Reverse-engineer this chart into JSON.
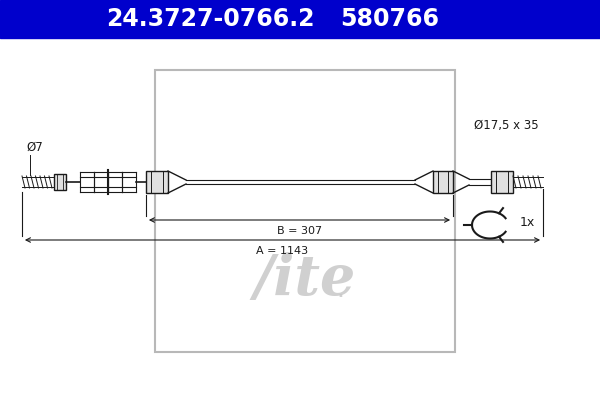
{
  "title1": "24.3727-0766.2",
  "title2": "580766",
  "header_bg": "#0000cc",
  "header_text_color": "#ffffff",
  "bg_color": "#ffffff",
  "drawing_color": "#1a1a1a",
  "watermark_color": "#c8c8c8",
  "border_color": "#b8b8b8",
  "label_phi7": "Ø7",
  "label_phi17": "Ø17,5 x 35",
  "label_B": "B = 307",
  "label_A": "A = 1143",
  "label_1x": "1x"
}
